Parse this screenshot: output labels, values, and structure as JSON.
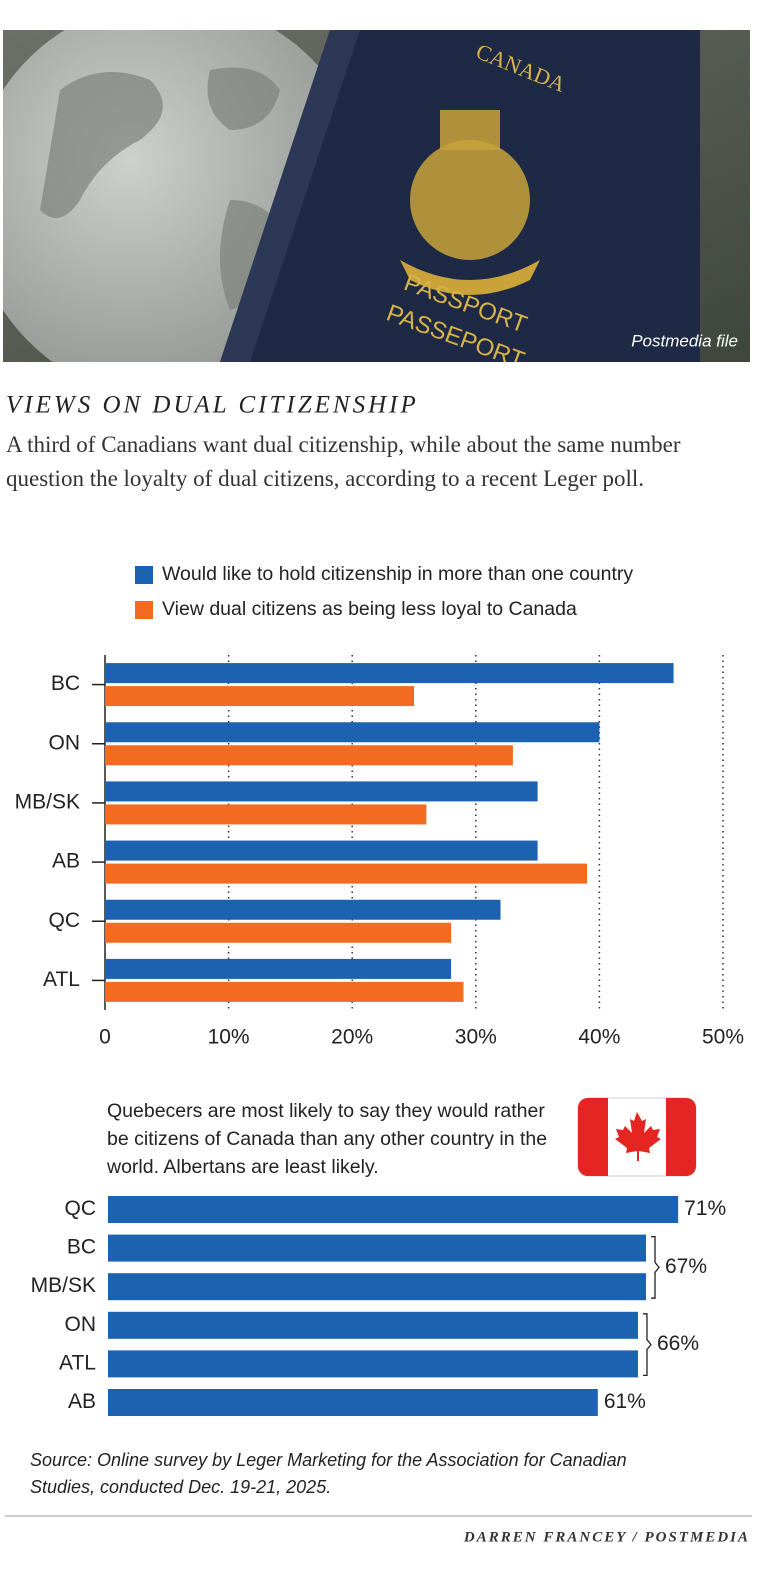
{
  "photo": {
    "passport_texts": [
      "CANADA",
      "PASSPORT",
      "PASSEPORT"
    ],
    "credit": "Postmedia file"
  },
  "title": "VIEWS ON DUAL CITIZENSHIP",
  "subtitle": "A third of Canadians want dual citizenship, while about the same number question the loyalty of dual citizens, according to a recent Leger poll.",
  "chart_data": [
    {
      "type": "grouped-hbar",
      "categories": [
        "BC",
        "ON",
        "MB/SK",
        "AB",
        "QC",
        "ATL"
      ],
      "series": [
        {
          "name": "Would like to hold citizenship in more than one country",
          "color": "#1c62b0",
          "values": [
            46,
            40,
            35,
            35,
            32,
            28
          ]
        },
        {
          "name": "View dual citizens as being less loyal to Canada",
          "color": "#f26b21",
          "values": [
            25,
            33,
            26,
            39,
            28,
            29
          ]
        }
      ],
      "xlim": [
        0,
        50
      ],
      "xticks": [
        0,
        {
          "value": 10,
          "label": "10%"
        },
        {
          "value": 20,
          "label": "20%"
        },
        {
          "value": 30,
          "label": "30%"
        },
        {
          "value": 40,
          "label": "40%"
        },
        {
          "value": 50,
          "label": "50%"
        }
      ],
      "grid": true,
      "legend": "top"
    },
    {
      "type": "hbar",
      "note": "Quebecers are most likely to say they would rather be citizens of Canada than any other country in the world. Albertans are least likely.",
      "categories": [
        "QC",
        "BC",
        "MB/SK",
        "ON",
        "ATL",
        "AB"
      ],
      "values": [
        71,
        67,
        67,
        66,
        66,
        61
      ],
      "value_labels": [
        "71%",
        "67%",
        null,
        "66%",
        null,
        "61%"
      ],
      "color": "#1c62b0"
    }
  ],
  "source": "Source: Online survey by Leger Marketing for the Association for Canadian Studies, conducted Dec. 19-21, 2025.",
  "credit": "DARREN FRANCEY / POSTMEDIA"
}
